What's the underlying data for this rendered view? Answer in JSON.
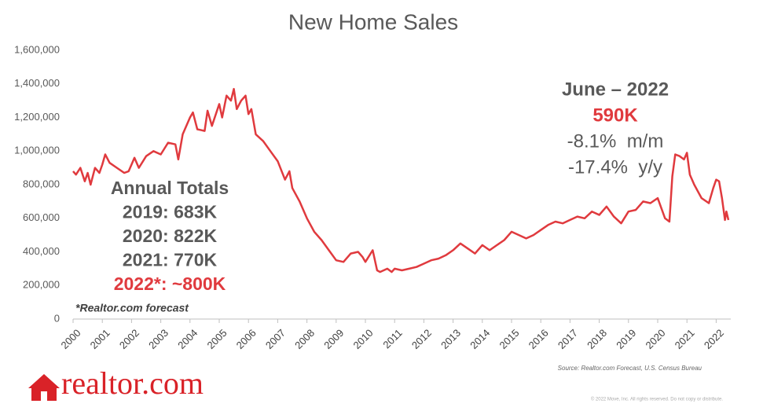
{
  "chart_data": {
    "type": "line",
    "title": "New Home Sales",
    "x": [
      2000.0,
      2000.1,
      2000.25,
      2000.4,
      2000.5,
      2000.6,
      2000.75,
      2000.9,
      2001.0,
      2001.1,
      2001.25,
      2001.5,
      2001.75,
      2001.9,
      2002.0,
      2002.1,
      2002.25,
      2002.5,
      2002.75,
      2003.0,
      2003.25,
      2003.5,
      2003.6,
      2003.75,
      2004.0,
      2004.1,
      2004.25,
      2004.5,
      2004.6,
      2004.75,
      2005.0,
      2005.1,
      2005.25,
      2005.4,
      2005.5,
      2005.6,
      2005.75,
      2005.9,
      2006.0,
      2006.1,
      2006.25,
      2006.5,
      2006.75,
      2007.0,
      2007.25,
      2007.4,
      2007.5,
      2007.75,
      2008.0,
      2008.25,
      2008.5,
      2008.75,
      2009.0,
      2009.25,
      2009.5,
      2009.75,
      2009.9,
      2010.0,
      2010.25,
      2010.4,
      2010.5,
      2010.75,
      2010.9,
      2011.0,
      2011.25,
      2011.5,
      2011.75,
      2012.0,
      2012.25,
      2012.5,
      2012.75,
      2013.0,
      2013.25,
      2013.5,
      2013.75,
      2014.0,
      2014.25,
      2014.5,
      2014.75,
      2015.0,
      2015.25,
      2015.5,
      2015.75,
      2016.0,
      2016.25,
      2016.5,
      2016.75,
      2017.0,
      2017.25,
      2017.5,
      2017.75,
      2018.0,
      2018.25,
      2018.5,
      2018.75,
      2019.0,
      2019.25,
      2019.5,
      2019.75,
      2020.0,
      2020.25,
      2020.4,
      2020.5,
      2020.6,
      2020.75,
      2020.9,
      2021.0,
      2021.1,
      2021.25,
      2021.5,
      2021.75,
      2021.9,
      2022.0,
      2022.1,
      2022.2,
      2022.3,
      2022.35,
      2022.42
    ],
    "series": [
      {
        "name": "New Home Sales",
        "color": "#e03a3e",
        "values": [
          880000,
          860000,
          900000,
          820000,
          870000,
          800000,
          900000,
          870000,
          920000,
          980000,
          930000,
          900000,
          870000,
          880000,
          920000,
          960000,
          900000,
          970000,
          1000000,
          980000,
          1050000,
          1040000,
          950000,
          1100000,
          1200000,
          1230000,
          1130000,
          1120000,
          1240000,
          1150000,
          1280000,
          1200000,
          1330000,
          1300000,
          1370000,
          1250000,
          1300000,
          1330000,
          1220000,
          1250000,
          1100000,
          1060000,
          1000000,
          940000,
          830000,
          880000,
          780000,
          700000,
          600000,
          520000,
          470000,
          410000,
          350000,
          340000,
          390000,
          400000,
          370000,
          340000,
          410000,
          290000,
          280000,
          300000,
          280000,
          300000,
          290000,
          300000,
          310000,
          330000,
          350000,
          360000,
          380000,
          410000,
          450000,
          420000,
          390000,
          440000,
          410000,
          440000,
          470000,
          520000,
          500000,
          480000,
          500000,
          530000,
          560000,
          580000,
          570000,
          590000,
          610000,
          600000,
          640000,
          620000,
          670000,
          610000,
          570000,
          640000,
          650000,
          700000,
          690000,
          720000,
          600000,
          580000,
          850000,
          980000,
          970000,
          950000,
          990000,
          860000,
          800000,
          720000,
          690000,
          780000,
          830000,
          820000,
          720000,
          590000,
          640000,
          590000
        ]
      }
    ],
    "xlim": [
      2000,
      2022.5
    ],
    "xticks": [
      2000,
      2001,
      2002,
      2003,
      2004,
      2005,
      2006,
      2007,
      2008,
      2009,
      2010,
      2011,
      2012,
      2013,
      2014,
      2015,
      2016,
      2017,
      2018,
      2019,
      2020,
      2021,
      2022
    ],
    "ylim": [
      0,
      1600000
    ],
    "yticks": [
      0,
      {
        "value": 200000,
        "label": "200,000"
      },
      {
        "value": 400000,
        "label": "400,000"
      },
      {
        "value": 600000,
        "label": "600,000"
      },
      {
        "value": 800000,
        "label": "800,000"
      },
      {
        "value": 1000000,
        "label": "1,000,000"
      },
      {
        "value": 1200000,
        "label": "1,200,000"
      },
      {
        "value": 1400000,
        "label": "1,400,000"
      },
      {
        "value": 1600000,
        "label": "1,600,000"
      }
    ],
    "grid": false,
    "annual_totals": [
      {
        "text": "Annual Totals",
        "color": "#595959"
      },
      {
        "text": "2019: 683K",
        "color": "#595959"
      },
      {
        "text": "2020: 822K",
        "color": "#595959"
      },
      {
        "text": "2021: 770K",
        "color": "#595959"
      },
      {
        "text": "2022*: ~800K",
        "color": "#e03a3e"
      }
    ],
    "forecast_note": "*Realtor.com forecast",
    "latest": [
      {
        "text": "June – 2022",
        "color": "#595959"
      },
      {
        "text": "590K",
        "color": "#e03a3e"
      },
      {
        "text": "-8.1%  m/m",
        "color": "#595959"
      },
      {
        "text": "-17.4%  y/y",
        "color": "#595959"
      }
    ],
    "source": "Source: Realtor.com Forecast, U.S. Census Bureau",
    "copyright": "© 2022 Move, Inc. All rights reserved. Do not copy or distribute.",
    "logo": "realtor.com"
  }
}
